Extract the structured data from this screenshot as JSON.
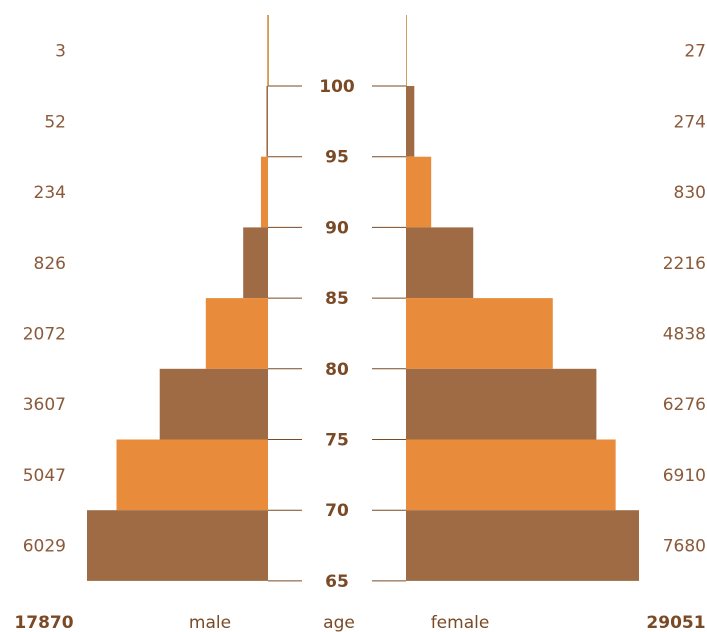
{
  "chart_data": {
    "type": "bar",
    "orientation": "horizontal-pyramid",
    "age_ticks": [
      "100",
      "95",
      "90",
      "85",
      "80",
      "75",
      "70",
      "65"
    ],
    "groups": [
      "100+",
      "95-99",
      "90-94",
      "85-89",
      "80-84",
      "75-79",
      "70-74",
      "65-69"
    ],
    "series": [
      {
        "name": "male",
        "values": [
          3,
          52,
          234,
          826,
          2072,
          3607,
          5047,
          6029
        ]
      },
      {
        "name": "female",
        "values": [
          27,
          274,
          830,
          2216,
          4838,
          6276,
          6910,
          7680
        ]
      }
    ],
    "totals": {
      "male": "17870",
      "female": "29051"
    },
    "labels": {
      "male": "male",
      "age": "age",
      "female": "female"
    },
    "band_colors": [
      "#9e6b45",
      "#e88c3c"
    ],
    "bar_color_note_free": true
  }
}
